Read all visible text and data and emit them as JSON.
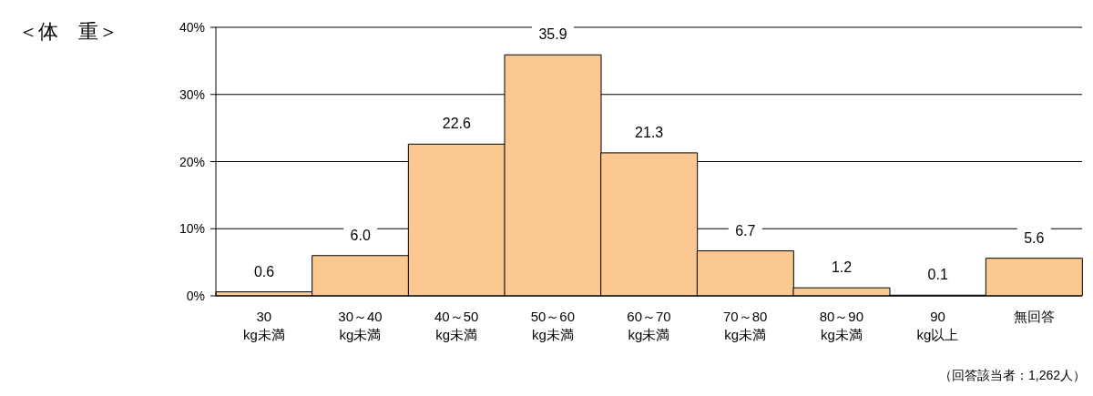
{
  "chart_data": {
    "type": "bar",
    "title": "＜体　重＞",
    "categories": [
      "30\nkg未満",
      "30～40\nkg未満",
      "40～50\nkg未満",
      "50～60\nkg未満",
      "60～70\nkg未満",
      "70～80\nkg未満",
      "80～90\nkg未満",
      "90\nkg以上",
      "無回答"
    ],
    "values": [
      0.6,
      6.0,
      22.6,
      35.9,
      21.3,
      6.7,
      1.2,
      0.1,
      5.6
    ],
    "value_labels": [
      "0.6",
      "6.0",
      "22.6",
      "35.9",
      "21.3",
      "6.7",
      "1.2",
      "0.1",
      "5.6"
    ],
    "color": "#fcc891",
    "ylim": [
      0,
      40
    ],
    "yticks": [
      {
        "value": 0,
        "label": "0%"
      },
      {
        "value": 10,
        "label": "10%"
      },
      {
        "value": 20,
        "label": "20%"
      },
      {
        "value": 30,
        "label": "30%"
      },
      {
        "value": 40,
        "label": "40%"
      }
    ],
    "grid": "y",
    "annotations": [
      "（回答該当者：1,262人）"
    ]
  }
}
